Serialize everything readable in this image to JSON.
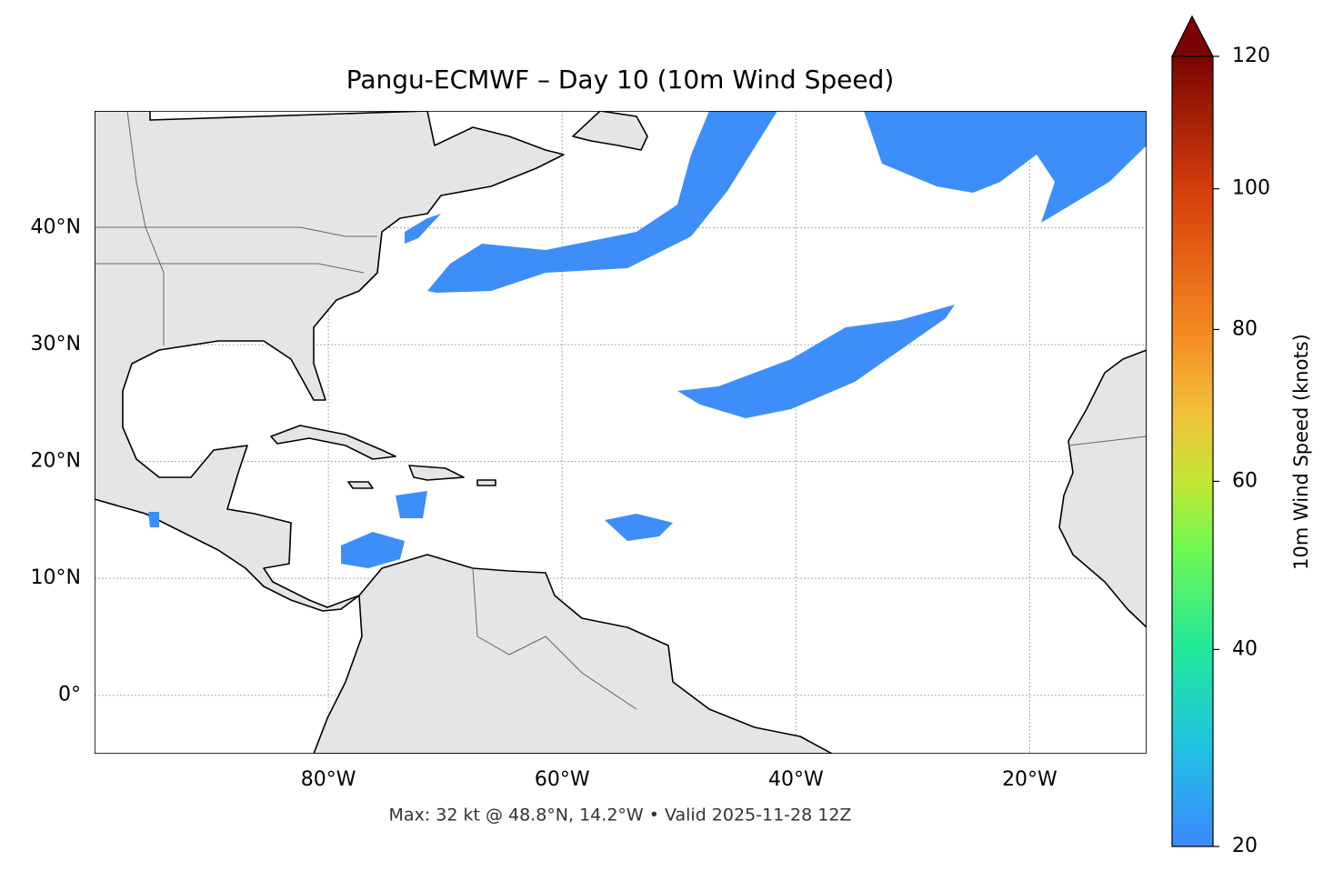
{
  "chart_data": {
    "type": "map",
    "title": "Pangu-ECMWF – Day 10 (10m Wind Speed)",
    "footer": "Max: 32 kt @ 48.8°N, 14.2°W • Valid 2025-11-28 12Z",
    "xlim": [
      -100,
      -10
    ],
    "ylim": [
      -5,
      50
    ],
    "xticks": [
      {
        "value": -80,
        "label": "80°W"
      },
      {
        "value": -60,
        "label": "60°W"
      },
      {
        "value": -40,
        "label": "40°W"
      },
      {
        "value": -20,
        "label": "20°W"
      }
    ],
    "yticks": [
      {
        "value": 0,
        "label": "0°"
      },
      {
        "value": 10,
        "label": "10°N"
      },
      {
        "value": 20,
        "label": "20°N"
      },
      {
        "value": 30,
        "label": "30°N"
      },
      {
        "value": 40,
        "label": "40°N"
      }
    ],
    "grid": true,
    "colorbar": {
      "label": "10m Wind Speed (knots)",
      "lim": [
        20,
        120
      ],
      "ticks": [
        20,
        40,
        60,
        80,
        100,
        120
      ],
      "power": 0.7,
      "extend": "max"
    }
  }
}
